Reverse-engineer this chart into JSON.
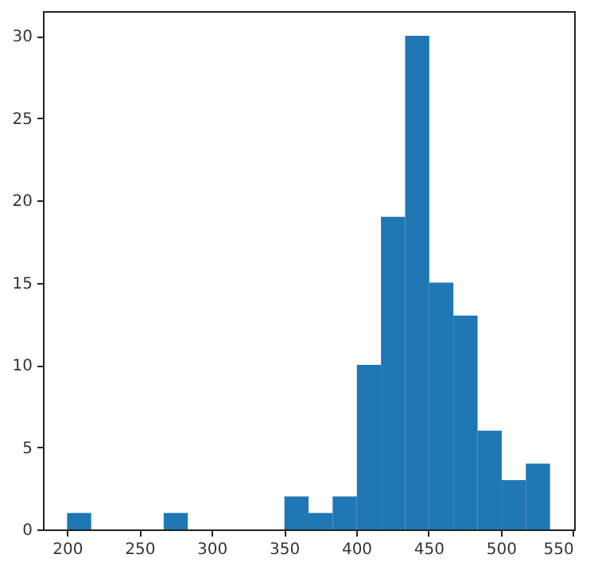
{
  "chart_data": {
    "type": "histogram",
    "bins": [
      200,
      216.7,
      233.4,
      250.1,
      266.8,
      283.5,
      300.2,
      316.9,
      333.6,
      350.3,
      367,
      383.7,
      400.4,
      417.1,
      433.8,
      450.5,
      467.2,
      483.9,
      500.6,
      517.3,
      534
    ],
    "values": [
      1,
      0,
      0,
      0,
      1,
      0,
      0,
      0,
      0,
      2,
      1,
      2,
      10,
      19,
      30,
      15,
      13,
      6,
      3,
      4
    ],
    "color": "#1f77b4",
    "xlim": [
      183.3,
      550.7
    ],
    "xticks": [
      200,
      250,
      300,
      350,
      400,
      450,
      500,
      550
    ],
    "ylim": [
      0,
      31.5
    ],
    "yticks": [
      0,
      5,
      10,
      15,
      20,
      25,
      30
    ],
    "grid": false
  }
}
